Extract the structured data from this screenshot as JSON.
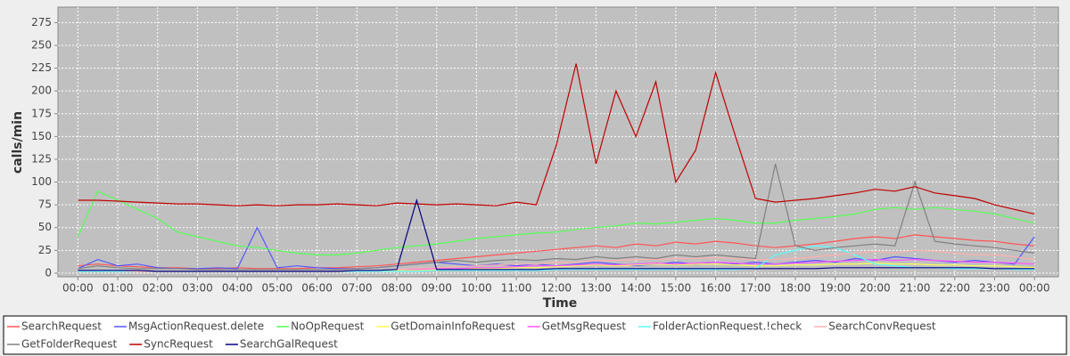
{
  "chart_data": {
    "type": "line",
    "x_label": "Time",
    "y_label": "calls/min",
    "xlim": [
      -0.5,
      24.6
    ],
    "ylim": [
      -4,
      292
    ],
    "xticks": [
      {
        "value": 0,
        "label": "00:00"
      },
      {
        "value": 1,
        "label": "01:00"
      },
      {
        "value": 2,
        "label": "02:00"
      },
      {
        "value": 3,
        "label": "03:00"
      },
      {
        "value": 4,
        "label": "04:00"
      },
      {
        "value": 5,
        "label": "05:00"
      },
      {
        "value": 6,
        "label": "06:00"
      },
      {
        "value": 7,
        "label": "07:00"
      },
      {
        "value": 8,
        "label": "08:00"
      },
      {
        "value": 9,
        "label": "09:00"
      },
      {
        "value": 10,
        "label": "10:00"
      },
      {
        "value": 11,
        "label": "11:00"
      },
      {
        "value": 12,
        "label": "12:00"
      },
      {
        "value": 13,
        "label": "13:00"
      },
      {
        "value": 14,
        "label": "14:00"
      },
      {
        "value": 15,
        "label": "15:00"
      },
      {
        "value": 16,
        "label": "16:00"
      },
      {
        "value": 17,
        "label": "17:00"
      },
      {
        "value": 18,
        "label": "18:00"
      },
      {
        "value": 19,
        "label": "19:00"
      },
      {
        "value": 20,
        "label": "20:00"
      },
      {
        "value": 21,
        "label": "21:00"
      },
      {
        "value": 22,
        "label": "22:00"
      },
      {
        "value": 23,
        "label": "23:00"
      },
      {
        "value": 24,
        "label": "00:00"
      }
    ],
    "yticks": [
      0,
      25,
      50,
      75,
      100,
      125,
      150,
      175,
      200,
      225,
      250,
      275
    ],
    "grid": true,
    "x": [
      0,
      0.5,
      1,
      1.5,
      2,
      2.5,
      3,
      3.5,
      4,
      4.5,
      5,
      5.5,
      6,
      6.5,
      7,
      7.5,
      8,
      8.5,
      9,
      9.5,
      10,
      10.5,
      11,
      11.5,
      12,
      12.5,
      13,
      13.5,
      14,
      14.5,
      15,
      15.5,
      16,
      16.5,
      17,
      17.5,
      18,
      18.5,
      19,
      19.5,
      20,
      20.5,
      21,
      21.5,
      22,
      22.5,
      23,
      23.5,
      24
    ],
    "series": [
      {
        "name": "SearchRequest",
        "color": "#ff5555",
        "values": [
          8,
          10,
          8,
          7,
          6,
          6,
          5,
          5,
          6,
          5,
          5,
          5,
          6,
          6,
          7,
          8,
          10,
          12,
          14,
          16,
          18,
          20,
          22,
          24,
          26,
          28,
          30,
          28,
          32,
          30,
          34,
          32,
          35,
          33,
          30,
          28,
          30,
          32,
          35,
          38,
          40,
          38,
          42,
          40,
          38,
          36,
          35,
          32,
          30
        ]
      },
      {
        "name": "MsgActionRequest.delete",
        "color": "#5555ff",
        "values": [
          5,
          15,
          8,
          10,
          6,
          5,
          5,
          6,
          5,
          50,
          6,
          8,
          6,
          5,
          5,
          6,
          8,
          10,
          12,
          10,
          8,
          10,
          8,
          10,
          8,
          10,
          12,
          10,
          8,
          10,
          12,
          10,
          12,
          10,
          12,
          10,
          12,
          14,
          12,
          16,
          14,
          18,
          16,
          14,
          12,
          14,
          12,
          10,
          40
        ]
      },
      {
        "name": "NoOpRequest",
        "color": "#55ff55",
        "values": [
          40,
          90,
          80,
          70,
          60,
          45,
          40,
          35,
          30,
          28,
          25,
          22,
          20,
          20,
          22,
          25,
          28,
          30,
          32,
          35,
          38,
          40,
          42,
          44,
          45,
          48,
          50,
          52,
          55,
          54,
          56,
          58,
          60,
          58,
          55,
          55,
          58,
          60,
          62,
          65,
          70,
          72,
          70,
          72,
          70,
          68,
          65,
          60,
          55
        ]
      },
      {
        "name": "GetDomainInfoRequest",
        "color": "#ffff55",
        "values": [
          2,
          2,
          2,
          2,
          2,
          2,
          2,
          2,
          2,
          2,
          2,
          2,
          2,
          2,
          2,
          2,
          3,
          3,
          4,
          4,
          5,
          5,
          6,
          6,
          7,
          8,
          9,
          8,
          9,
          10,
          9,
          10,
          10,
          9,
          8,
          8,
          9,
          9,
          10,
          10,
          11,
          10,
          10,
          9,
          9,
          8,
          8,
          7,
          6
        ]
      },
      {
        "name": "GetMsgRequest",
        "color": "#ff55ff",
        "values": [
          3,
          3,
          2,
          2,
          2,
          2,
          2,
          2,
          2,
          2,
          2,
          2,
          2,
          2,
          3,
          3,
          4,
          4,
          5,
          5,
          6,
          6,
          7,
          8,
          8,
          9,
          10,
          9,
          10,
          11,
          10,
          11,
          12,
          11,
          10,
          10,
          11,
          12,
          13,
          14,
          15,
          14,
          15,
          14,
          13,
          12,
          12,
          11,
          10
        ]
      },
      {
        "name": "FolderActionRequest.!check",
        "color": "#55ffff",
        "values": [
          2,
          2,
          2,
          2,
          2,
          2,
          2,
          2,
          2,
          2,
          2,
          2,
          2,
          2,
          2,
          2,
          2,
          2,
          3,
          3,
          3,
          3,
          3,
          3,
          4,
          4,
          4,
          4,
          4,
          4,
          4,
          4,
          4,
          4,
          5,
          20,
          25,
          30,
          28,
          20,
          10,
          8,
          6,
          6,
          5,
          5,
          5,
          4,
          4
        ]
      },
      {
        "name": "SearchConvRequest",
        "color": "#ffafaf",
        "values": [
          3,
          3,
          3,
          2,
          2,
          2,
          2,
          2,
          2,
          2,
          2,
          2,
          2,
          2,
          3,
          3,
          4,
          5,
          6,
          7,
          8,
          9,
          10,
          10,
          12,
          12,
          14,
          14,
          15,
          15,
          16,
          16,
          17,
          16,
          15,
          15,
          16,
          18,
          20,
          22,
          24,
          22,
          25,
          24,
          22,
          20,
          20,
          18,
          15
        ]
      },
      {
        "name": "GetFolderRequest",
        "color": "#808080",
        "values": [
          5,
          8,
          6,
          5,
          5,
          5,
          4,
          4,
          4,
          4,
          4,
          4,
          4,
          4,
          5,
          6,
          8,
          10,
          12,
          14,
          12,
          14,
          15,
          14,
          16,
          15,
          18,
          16,
          18,
          16,
          20,
          18,
          20,
          18,
          16,
          120,
          30,
          25,
          28,
          30,
          32,
          30,
          100,
          35,
          32,
          30,
          28,
          25,
          22
        ]
      },
      {
        "name": "SyncRequest",
        "color": "#c00000",
        "values": [
          80,
          80,
          79,
          78,
          77,
          76,
          76,
          75,
          74,
          75,
          74,
          75,
          75,
          76,
          75,
          74,
          77,
          76,
          75,
          76,
          75,
          74,
          78,
          75,
          140,
          230,
          120,
          200,
          150,
          210,
          100,
          135,
          220,
          150,
          82,
          78,
          80,
          82,
          85,
          88,
          92,
          90,
          95,
          88,
          85,
          82,
          75,
          70,
          65
        ]
      },
      {
        "name": "SearchGalRequest",
        "color": "#000080",
        "values": [
          3,
          3,
          3,
          3,
          2,
          2,
          2,
          2,
          2,
          2,
          2,
          2,
          2,
          2,
          3,
          3,
          4,
          80,
          4,
          4,
          4,
          4,
          4,
          4,
          5,
          5,
          5,
          5,
          5,
          5,
          5,
          5,
          5,
          5,
          5,
          5,
          5,
          5,
          6,
          6,
          6,
          6,
          6,
          6,
          6,
          6,
          5,
          5,
          5
        ]
      }
    ]
  }
}
